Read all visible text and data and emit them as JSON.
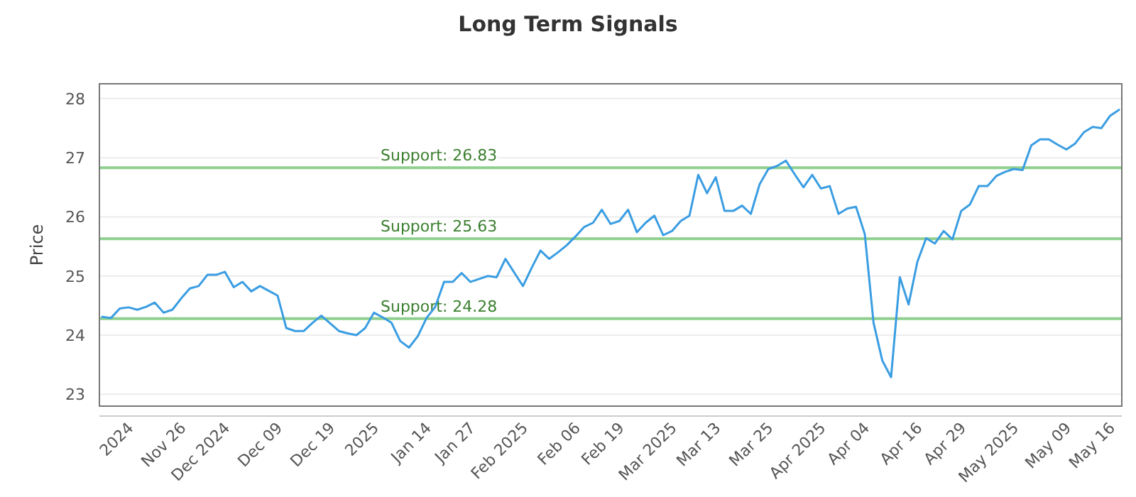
{
  "chart_data": {
    "type": "line",
    "title": "Long Term Signals",
    "ylabel": "Price",
    "categories": [
      null,
      null,
      null,
      "2024",
      null,
      null,
      null,
      null,
      null,
      "Nov 26",
      null,
      null,
      null,
      null,
      "Dec 2024",
      null,
      null,
      null,
      null,
      null,
      "Dec 09",
      null,
      null,
      null,
      null,
      null,
      "Dec 19",
      null,
      null,
      null,
      null,
      "2025",
      null,
      null,
      null,
      null,
      null,
      "Jan 14",
      null,
      null,
      null,
      null,
      "Jan 27",
      null,
      null,
      null,
      null,
      null,
      "Feb 2025",
      null,
      null,
      null,
      null,
      null,
      "Feb 06",
      null,
      null,
      null,
      null,
      "Feb 19",
      null,
      null,
      null,
      null,
      null,
      "Mar 2025",
      null,
      null,
      null,
      null,
      "Mar 13",
      null,
      null,
      null,
      null,
      null,
      "Mar 25",
      null,
      null,
      null,
      null,
      null,
      "Apr 2025",
      null,
      null,
      null,
      null,
      "Apr 04",
      null,
      null,
      null,
      null,
      null,
      "Apr 16",
      null,
      null,
      null,
      null,
      "Apr 29",
      null,
      null,
      null,
      null,
      null,
      "May 2025",
      null,
      null,
      null,
      null,
      null,
      "May 09",
      null,
      null,
      null,
      null,
      "May 16",
      null
    ],
    "series": [
      {
        "color": "#3a9de2",
        "values": [
          24.31,
          24.29,
          24.45,
          24.47,
          24.43,
          24.48,
          24.55,
          24.38,
          24.43,
          24.62,
          24.79,
          24.83,
          25.02,
          25.02,
          25.07,
          24.81,
          24.9,
          24.74,
          24.83,
          24.75,
          24.67,
          24.12,
          24.07,
          24.07,
          24.21,
          24.33,
          24.2,
          24.07,
          24.03,
          24.0,
          24.12,
          24.38,
          24.3,
          24.21,
          23.9,
          23.79,
          23.98,
          24.29,
          24.48,
          24.9,
          24.9,
          25.05,
          24.9,
          24.95,
          25.0,
          24.98,
          25.29,
          25.06,
          24.83,
          25.14,
          25.43,
          25.29,
          25.4,
          25.52,
          25.67,
          25.83,
          25.9,
          26.12,
          25.88,
          25.93,
          26.12,
          25.74,
          25.9,
          26.02,
          25.69,
          25.76,
          25.93,
          26.02,
          26.71,
          26.4,
          26.67,
          26.1,
          26.1,
          26.19,
          26.05,
          26.55,
          26.81,
          26.86,
          26.95,
          26.72,
          26.5,
          26.71,
          26.48,
          26.52,
          26.05,
          26.14,
          26.17,
          25.71,
          24.21,
          23.57,
          23.29,
          24.98,
          24.52,
          25.24,
          25.64,
          25.55,
          25.76,
          25.62,
          26.1,
          26.21,
          26.52,
          26.52,
          26.69,
          26.76,
          26.81,
          26.79,
          27.21,
          27.31,
          27.31,
          27.22,
          27.14,
          27.24,
          27.43,
          27.52,
          27.5,
          27.71,
          27.81
        ]
      }
    ],
    "ylim": [
      22.8,
      28.25
    ],
    "yticks": [
      23,
      24,
      25,
      26,
      27,
      28
    ],
    "grid": "y",
    "marker": "none",
    "line_style": "solid",
    "ref_lines": [
      {
        "axis": "y",
        "value": 26.83,
        "label": "Support: 26.83",
        "color": "#8fd08f"
      },
      {
        "axis": "y",
        "value": 25.63,
        "label": "Support: 25.63",
        "color": "#8fd08f"
      },
      {
        "axis": "y",
        "value": 24.28,
        "label": "Support: 24.28",
        "color": "#8fd08f"
      }
    ]
  }
}
